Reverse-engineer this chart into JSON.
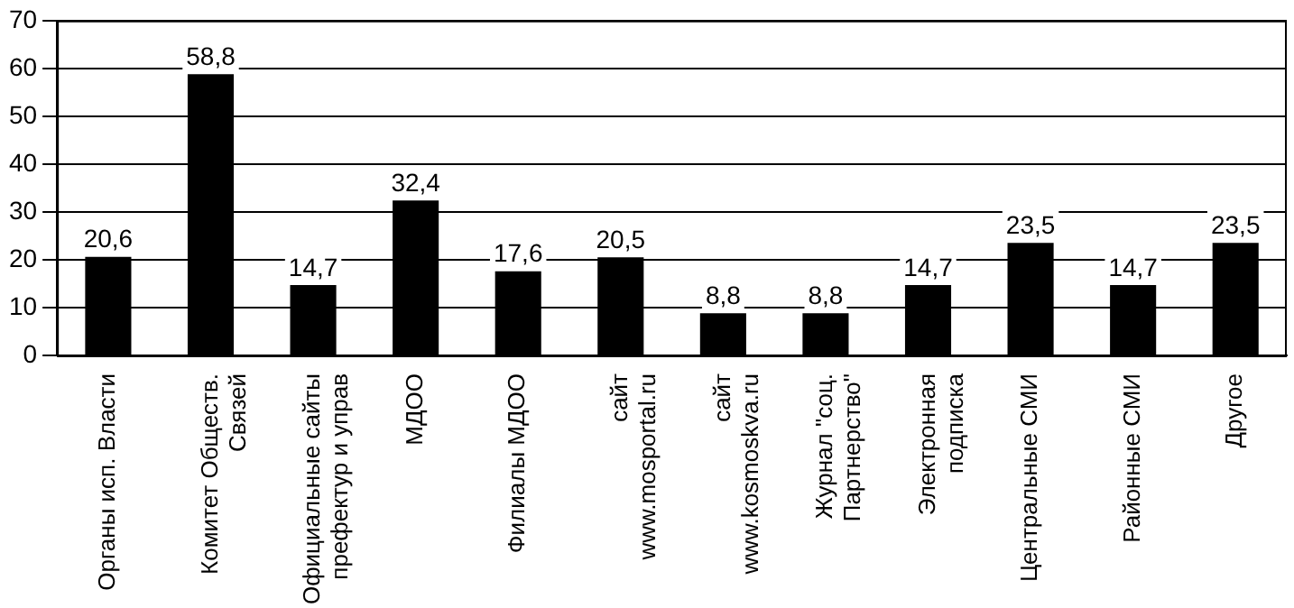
{
  "chart_data": {
    "type": "bar",
    "categories": [
      "Органы исп. Власти",
      "Комитет Обществ.\nСвязей",
      "Официальные сайты\nпрефектур и управ",
      "МДОО",
      "Филиалы МДОО",
      "сайт\nwww.mosportal.ru",
      "сайт\nwww.kosmoskva.ru",
      "Журнал \"соц.\nПартнерство\"",
      "Электронная\nподписка",
      "Центральные СМИ",
      "Районные СМИ",
      "Другое"
    ],
    "values": [
      20.6,
      58.8,
      14.7,
      32.4,
      17.6,
      20.5,
      8.8,
      8.8,
      14.7,
      23.5,
      14.7,
      23.5
    ],
    "value_labels": [
      "20,6",
      "58,8",
      "14,7",
      "32,4",
      "17,6",
      "20,5",
      "8,8",
      "8,8",
      "14,7",
      "23,5",
      "14,7",
      "23,5"
    ],
    "color": "#000000",
    "ylim": [
      0,
      70
    ],
    "yticks": [
      0,
      10,
      20,
      30,
      40,
      50,
      60,
      70
    ],
    "grid": "y",
    "legend": false
  }
}
